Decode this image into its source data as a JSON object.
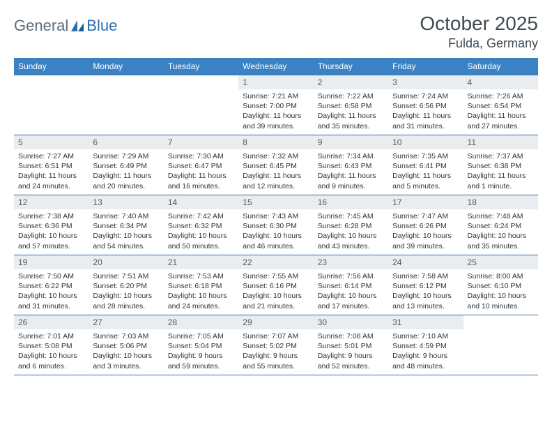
{
  "logo": {
    "part1": "General",
    "part2": "Blue"
  },
  "title": "October 2025",
  "subtitle": "Fulda, Germany",
  "colors": {
    "header_bg": "#3b82c4",
    "header_text": "#ffffff",
    "daynum_bg": "#e9edef",
    "cell_border": "#3b6fa0",
    "logo_gray": "#5d6d78",
    "logo_blue": "#2b6fb0"
  },
  "weekdays": [
    "Sunday",
    "Monday",
    "Tuesday",
    "Wednesday",
    "Thursday",
    "Friday",
    "Saturday"
  ],
  "weeks": [
    [
      {
        "empty": true,
        "day": "",
        "sunrise": "",
        "sunset": "",
        "daylight1": "",
        "daylight2": ""
      },
      {
        "empty": true,
        "day": "",
        "sunrise": "",
        "sunset": "",
        "daylight1": "",
        "daylight2": ""
      },
      {
        "empty": true,
        "day": "",
        "sunrise": "",
        "sunset": "",
        "daylight1": "",
        "daylight2": ""
      },
      {
        "day": "1",
        "sunrise": "Sunrise: 7:21 AM",
        "sunset": "Sunset: 7:00 PM",
        "daylight1": "Daylight: 11 hours",
        "daylight2": "and 39 minutes."
      },
      {
        "day": "2",
        "sunrise": "Sunrise: 7:22 AM",
        "sunset": "Sunset: 6:58 PM",
        "daylight1": "Daylight: 11 hours",
        "daylight2": "and 35 minutes."
      },
      {
        "day": "3",
        "sunrise": "Sunrise: 7:24 AM",
        "sunset": "Sunset: 6:56 PM",
        "daylight1": "Daylight: 11 hours",
        "daylight2": "and 31 minutes."
      },
      {
        "day": "4",
        "sunrise": "Sunrise: 7:26 AM",
        "sunset": "Sunset: 6:54 PM",
        "daylight1": "Daylight: 11 hours",
        "daylight2": "and 27 minutes."
      }
    ],
    [
      {
        "day": "5",
        "sunrise": "Sunrise: 7:27 AM",
        "sunset": "Sunset: 6:51 PM",
        "daylight1": "Daylight: 11 hours",
        "daylight2": "and 24 minutes."
      },
      {
        "day": "6",
        "sunrise": "Sunrise: 7:29 AM",
        "sunset": "Sunset: 6:49 PM",
        "daylight1": "Daylight: 11 hours",
        "daylight2": "and 20 minutes."
      },
      {
        "day": "7",
        "sunrise": "Sunrise: 7:30 AM",
        "sunset": "Sunset: 6:47 PM",
        "daylight1": "Daylight: 11 hours",
        "daylight2": "and 16 minutes."
      },
      {
        "day": "8",
        "sunrise": "Sunrise: 7:32 AM",
        "sunset": "Sunset: 6:45 PM",
        "daylight1": "Daylight: 11 hours",
        "daylight2": "and 12 minutes."
      },
      {
        "day": "9",
        "sunrise": "Sunrise: 7:34 AM",
        "sunset": "Sunset: 6:43 PM",
        "daylight1": "Daylight: 11 hours",
        "daylight2": "and 9 minutes."
      },
      {
        "day": "10",
        "sunrise": "Sunrise: 7:35 AM",
        "sunset": "Sunset: 6:41 PM",
        "daylight1": "Daylight: 11 hours",
        "daylight2": "and 5 minutes."
      },
      {
        "day": "11",
        "sunrise": "Sunrise: 7:37 AM",
        "sunset": "Sunset: 6:38 PM",
        "daylight1": "Daylight: 11 hours",
        "daylight2": "and 1 minute."
      }
    ],
    [
      {
        "day": "12",
        "sunrise": "Sunrise: 7:38 AM",
        "sunset": "Sunset: 6:36 PM",
        "daylight1": "Daylight: 10 hours",
        "daylight2": "and 57 minutes."
      },
      {
        "day": "13",
        "sunrise": "Sunrise: 7:40 AM",
        "sunset": "Sunset: 6:34 PM",
        "daylight1": "Daylight: 10 hours",
        "daylight2": "and 54 minutes."
      },
      {
        "day": "14",
        "sunrise": "Sunrise: 7:42 AM",
        "sunset": "Sunset: 6:32 PM",
        "daylight1": "Daylight: 10 hours",
        "daylight2": "and 50 minutes."
      },
      {
        "day": "15",
        "sunrise": "Sunrise: 7:43 AM",
        "sunset": "Sunset: 6:30 PM",
        "daylight1": "Daylight: 10 hours",
        "daylight2": "and 46 minutes."
      },
      {
        "day": "16",
        "sunrise": "Sunrise: 7:45 AM",
        "sunset": "Sunset: 6:28 PM",
        "daylight1": "Daylight: 10 hours",
        "daylight2": "and 43 minutes."
      },
      {
        "day": "17",
        "sunrise": "Sunrise: 7:47 AM",
        "sunset": "Sunset: 6:26 PM",
        "daylight1": "Daylight: 10 hours",
        "daylight2": "and 39 minutes."
      },
      {
        "day": "18",
        "sunrise": "Sunrise: 7:48 AM",
        "sunset": "Sunset: 6:24 PM",
        "daylight1": "Daylight: 10 hours",
        "daylight2": "and 35 minutes."
      }
    ],
    [
      {
        "day": "19",
        "sunrise": "Sunrise: 7:50 AM",
        "sunset": "Sunset: 6:22 PM",
        "daylight1": "Daylight: 10 hours",
        "daylight2": "and 31 minutes."
      },
      {
        "day": "20",
        "sunrise": "Sunrise: 7:51 AM",
        "sunset": "Sunset: 6:20 PM",
        "daylight1": "Daylight: 10 hours",
        "daylight2": "and 28 minutes."
      },
      {
        "day": "21",
        "sunrise": "Sunrise: 7:53 AM",
        "sunset": "Sunset: 6:18 PM",
        "daylight1": "Daylight: 10 hours",
        "daylight2": "and 24 minutes."
      },
      {
        "day": "22",
        "sunrise": "Sunrise: 7:55 AM",
        "sunset": "Sunset: 6:16 PM",
        "daylight1": "Daylight: 10 hours",
        "daylight2": "and 21 minutes."
      },
      {
        "day": "23",
        "sunrise": "Sunrise: 7:56 AM",
        "sunset": "Sunset: 6:14 PM",
        "daylight1": "Daylight: 10 hours",
        "daylight2": "and 17 minutes."
      },
      {
        "day": "24",
        "sunrise": "Sunrise: 7:58 AM",
        "sunset": "Sunset: 6:12 PM",
        "daylight1": "Daylight: 10 hours",
        "daylight2": "and 13 minutes."
      },
      {
        "day": "25",
        "sunrise": "Sunrise: 8:00 AM",
        "sunset": "Sunset: 6:10 PM",
        "daylight1": "Daylight: 10 hours",
        "daylight2": "and 10 minutes."
      }
    ],
    [
      {
        "day": "26",
        "sunrise": "Sunrise: 7:01 AM",
        "sunset": "Sunset: 5:08 PM",
        "daylight1": "Daylight: 10 hours",
        "daylight2": "and 6 minutes."
      },
      {
        "day": "27",
        "sunrise": "Sunrise: 7:03 AM",
        "sunset": "Sunset: 5:06 PM",
        "daylight1": "Daylight: 10 hours",
        "daylight2": "and 3 minutes."
      },
      {
        "day": "28",
        "sunrise": "Sunrise: 7:05 AM",
        "sunset": "Sunset: 5:04 PM",
        "daylight1": "Daylight: 9 hours",
        "daylight2": "and 59 minutes."
      },
      {
        "day": "29",
        "sunrise": "Sunrise: 7:07 AM",
        "sunset": "Sunset: 5:02 PM",
        "daylight1": "Daylight: 9 hours",
        "daylight2": "and 55 minutes."
      },
      {
        "day": "30",
        "sunrise": "Sunrise: 7:08 AM",
        "sunset": "Sunset: 5:01 PM",
        "daylight1": "Daylight: 9 hours",
        "daylight2": "and 52 minutes."
      },
      {
        "day": "31",
        "sunrise": "Sunrise: 7:10 AM",
        "sunset": "Sunset: 4:59 PM",
        "daylight1": "Daylight: 9 hours",
        "daylight2": "and 48 minutes."
      },
      {
        "empty": true,
        "day": "",
        "sunrise": "",
        "sunset": "",
        "daylight1": "",
        "daylight2": ""
      }
    ]
  ]
}
